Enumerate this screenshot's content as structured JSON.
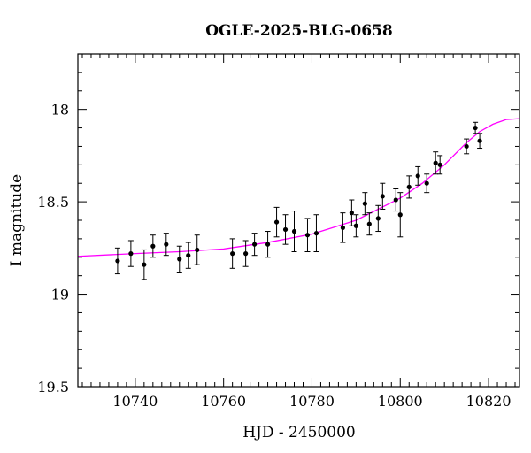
{
  "chart_data": {
    "type": "scatter",
    "title": "OGLE-2025-BLG-0658",
    "xlabel": "HJD - 2450000",
    "ylabel": "I magnitude",
    "xlim": [
      10727,
      10827
    ],
    "ylim": [
      19.5,
      17.7
    ],
    "y_inverted": true,
    "x_major_ticks": [
      10740,
      10760,
      10780,
      10800,
      10820
    ],
    "x_tick_labels": [
      "10740",
      "10760",
      "10780",
      "10800",
      "10820"
    ],
    "x_minor_step": 2,
    "y_major_ticks": [
      18,
      18.5,
      19,
      19.5
    ],
    "y_tick_labels": [
      "18",
      "18.5",
      "19",
      "19.5"
    ],
    "y_minor_step": 0.1,
    "grid": false,
    "marker_color": "#000000",
    "model_color": "#ff00ff",
    "points": [
      {
        "x": 10736,
        "y": 18.82,
        "err": 0.07
      },
      {
        "x": 10739,
        "y": 18.78,
        "err": 0.07
      },
      {
        "x": 10742,
        "y": 18.84,
        "err": 0.08
      },
      {
        "x": 10744,
        "y": 18.74,
        "err": 0.06
      },
      {
        "x": 10747,
        "y": 18.73,
        "err": 0.06
      },
      {
        "x": 10750,
        "y": 18.81,
        "err": 0.07
      },
      {
        "x": 10752,
        "y": 18.79,
        "err": 0.07
      },
      {
        "x": 10754,
        "y": 18.76,
        "err": 0.08
      },
      {
        "x": 10762,
        "y": 18.78,
        "err": 0.08
      },
      {
        "x": 10765,
        "y": 18.78,
        "err": 0.07
      },
      {
        "x": 10767,
        "y": 18.73,
        "err": 0.06
      },
      {
        "x": 10770,
        "y": 18.73,
        "err": 0.07
      },
      {
        "x": 10772,
        "y": 18.61,
        "err": 0.08
      },
      {
        "x": 10774,
        "y": 18.65,
        "err": 0.08
      },
      {
        "x": 10776,
        "y": 18.66,
        "err": 0.11
      },
      {
        "x": 10779,
        "y": 18.68,
        "err": 0.09
      },
      {
        "x": 10781,
        "y": 18.67,
        "err": 0.1
      },
      {
        "x": 10787,
        "y": 18.64,
        "err": 0.08
      },
      {
        "x": 10789,
        "y": 18.56,
        "err": 0.07
      },
      {
        "x": 10790,
        "y": 18.63,
        "err": 0.06
      },
      {
        "x": 10792,
        "y": 18.51,
        "err": 0.06
      },
      {
        "x": 10793,
        "y": 18.62,
        "err": 0.06
      },
      {
        "x": 10795,
        "y": 18.59,
        "err": 0.07
      },
      {
        "x": 10796,
        "y": 18.47,
        "err": 0.07
      },
      {
        "x": 10799,
        "y": 18.49,
        "err": 0.06
      },
      {
        "x": 10800,
        "y": 18.57,
        "err": 0.12
      },
      {
        "x": 10802,
        "y": 18.42,
        "err": 0.06
      },
      {
        "x": 10804,
        "y": 18.36,
        "err": 0.05
      },
      {
        "x": 10806,
        "y": 18.4,
        "err": 0.05
      },
      {
        "x": 10808,
        "y": 18.29,
        "err": 0.06
      },
      {
        "x": 10809,
        "y": 18.3,
        "err": 0.05
      },
      {
        "x": 10815,
        "y": 18.2,
        "err": 0.04
      },
      {
        "x": 10817,
        "y": 18.1,
        "err": 0.03
      },
      {
        "x": 10818,
        "y": 18.17,
        "err": 0.04
      }
    ],
    "model_curve": [
      [
        10727,
        18.795
      ],
      [
        10740,
        18.78
      ],
      [
        10750,
        18.77
      ],
      [
        10760,
        18.755
      ],
      [
        10770,
        18.72
      ],
      [
        10780,
        18.675
      ],
      [
        10790,
        18.6
      ],
      [
        10800,
        18.48
      ],
      [
        10805,
        18.4
      ],
      [
        10810,
        18.3
      ],
      [
        10815,
        18.18
      ],
      [
        10818,
        18.12
      ],
      [
        10821,
        18.08
      ],
      [
        10824,
        18.055
      ],
      [
        10827,
        18.05
      ]
    ]
  }
}
